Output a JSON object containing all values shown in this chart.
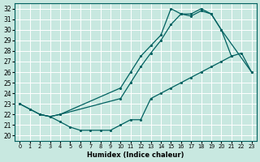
{
  "xlabel": "Humidex (Indice chaleur)",
  "xlim": [
    -0.5,
    23.5
  ],
  "ylim": [
    19.5,
    32.5
  ],
  "xticks": [
    0,
    1,
    2,
    3,
    4,
    5,
    6,
    7,
    8,
    9,
    10,
    11,
    12,
    13,
    14,
    15,
    16,
    17,
    18,
    19,
    20,
    21,
    22,
    23
  ],
  "yticks": [
    20,
    21,
    22,
    23,
    24,
    25,
    26,
    27,
    28,
    29,
    30,
    31,
    32
  ],
  "bg_color": "#c8e8e0",
  "line_color": "#006060",
  "grid_color": "#ffffff",
  "curveA_x": [
    0,
    1,
    2,
    3,
    4,
    10,
    11,
    12,
    13,
    14,
    15,
    16,
    17,
    18,
    19,
    20,
    21
  ],
  "curveA_y": [
    23.0,
    22.5,
    22.0,
    21.8,
    22.0,
    24.5,
    26.0,
    27.5,
    28.5,
    29.5,
    32.0,
    31.5,
    31.5,
    32.0,
    31.5,
    30.0,
    27.5
  ],
  "curveB_x": [
    0,
    1,
    2,
    3,
    4,
    5,
    6,
    7,
    8,
    9,
    10,
    11,
    12,
    13,
    14,
    15,
    16,
    17,
    18,
    19,
    20,
    21,
    22,
    23
  ],
  "curveB_y": [
    23.0,
    22.5,
    22.0,
    21.8,
    21.3,
    20.8,
    20.5,
    20.5,
    20.5,
    20.5,
    21.0,
    21.5,
    21.5,
    23.5,
    24.0,
    24.5,
    25.0,
    25.5,
    26.0,
    26.5,
    27.0,
    27.5,
    27.8,
    26.0
  ],
  "curveC_x": [
    2,
    3,
    4,
    10,
    11,
    12,
    13,
    14,
    15,
    16,
    17,
    18,
    19,
    20,
    23
  ],
  "curveC_y": [
    22.0,
    21.8,
    22.0,
    23.5,
    25.0,
    26.5,
    27.8,
    29.0,
    30.5,
    31.5,
    31.3,
    31.8,
    31.5,
    30.0,
    26.0
  ]
}
